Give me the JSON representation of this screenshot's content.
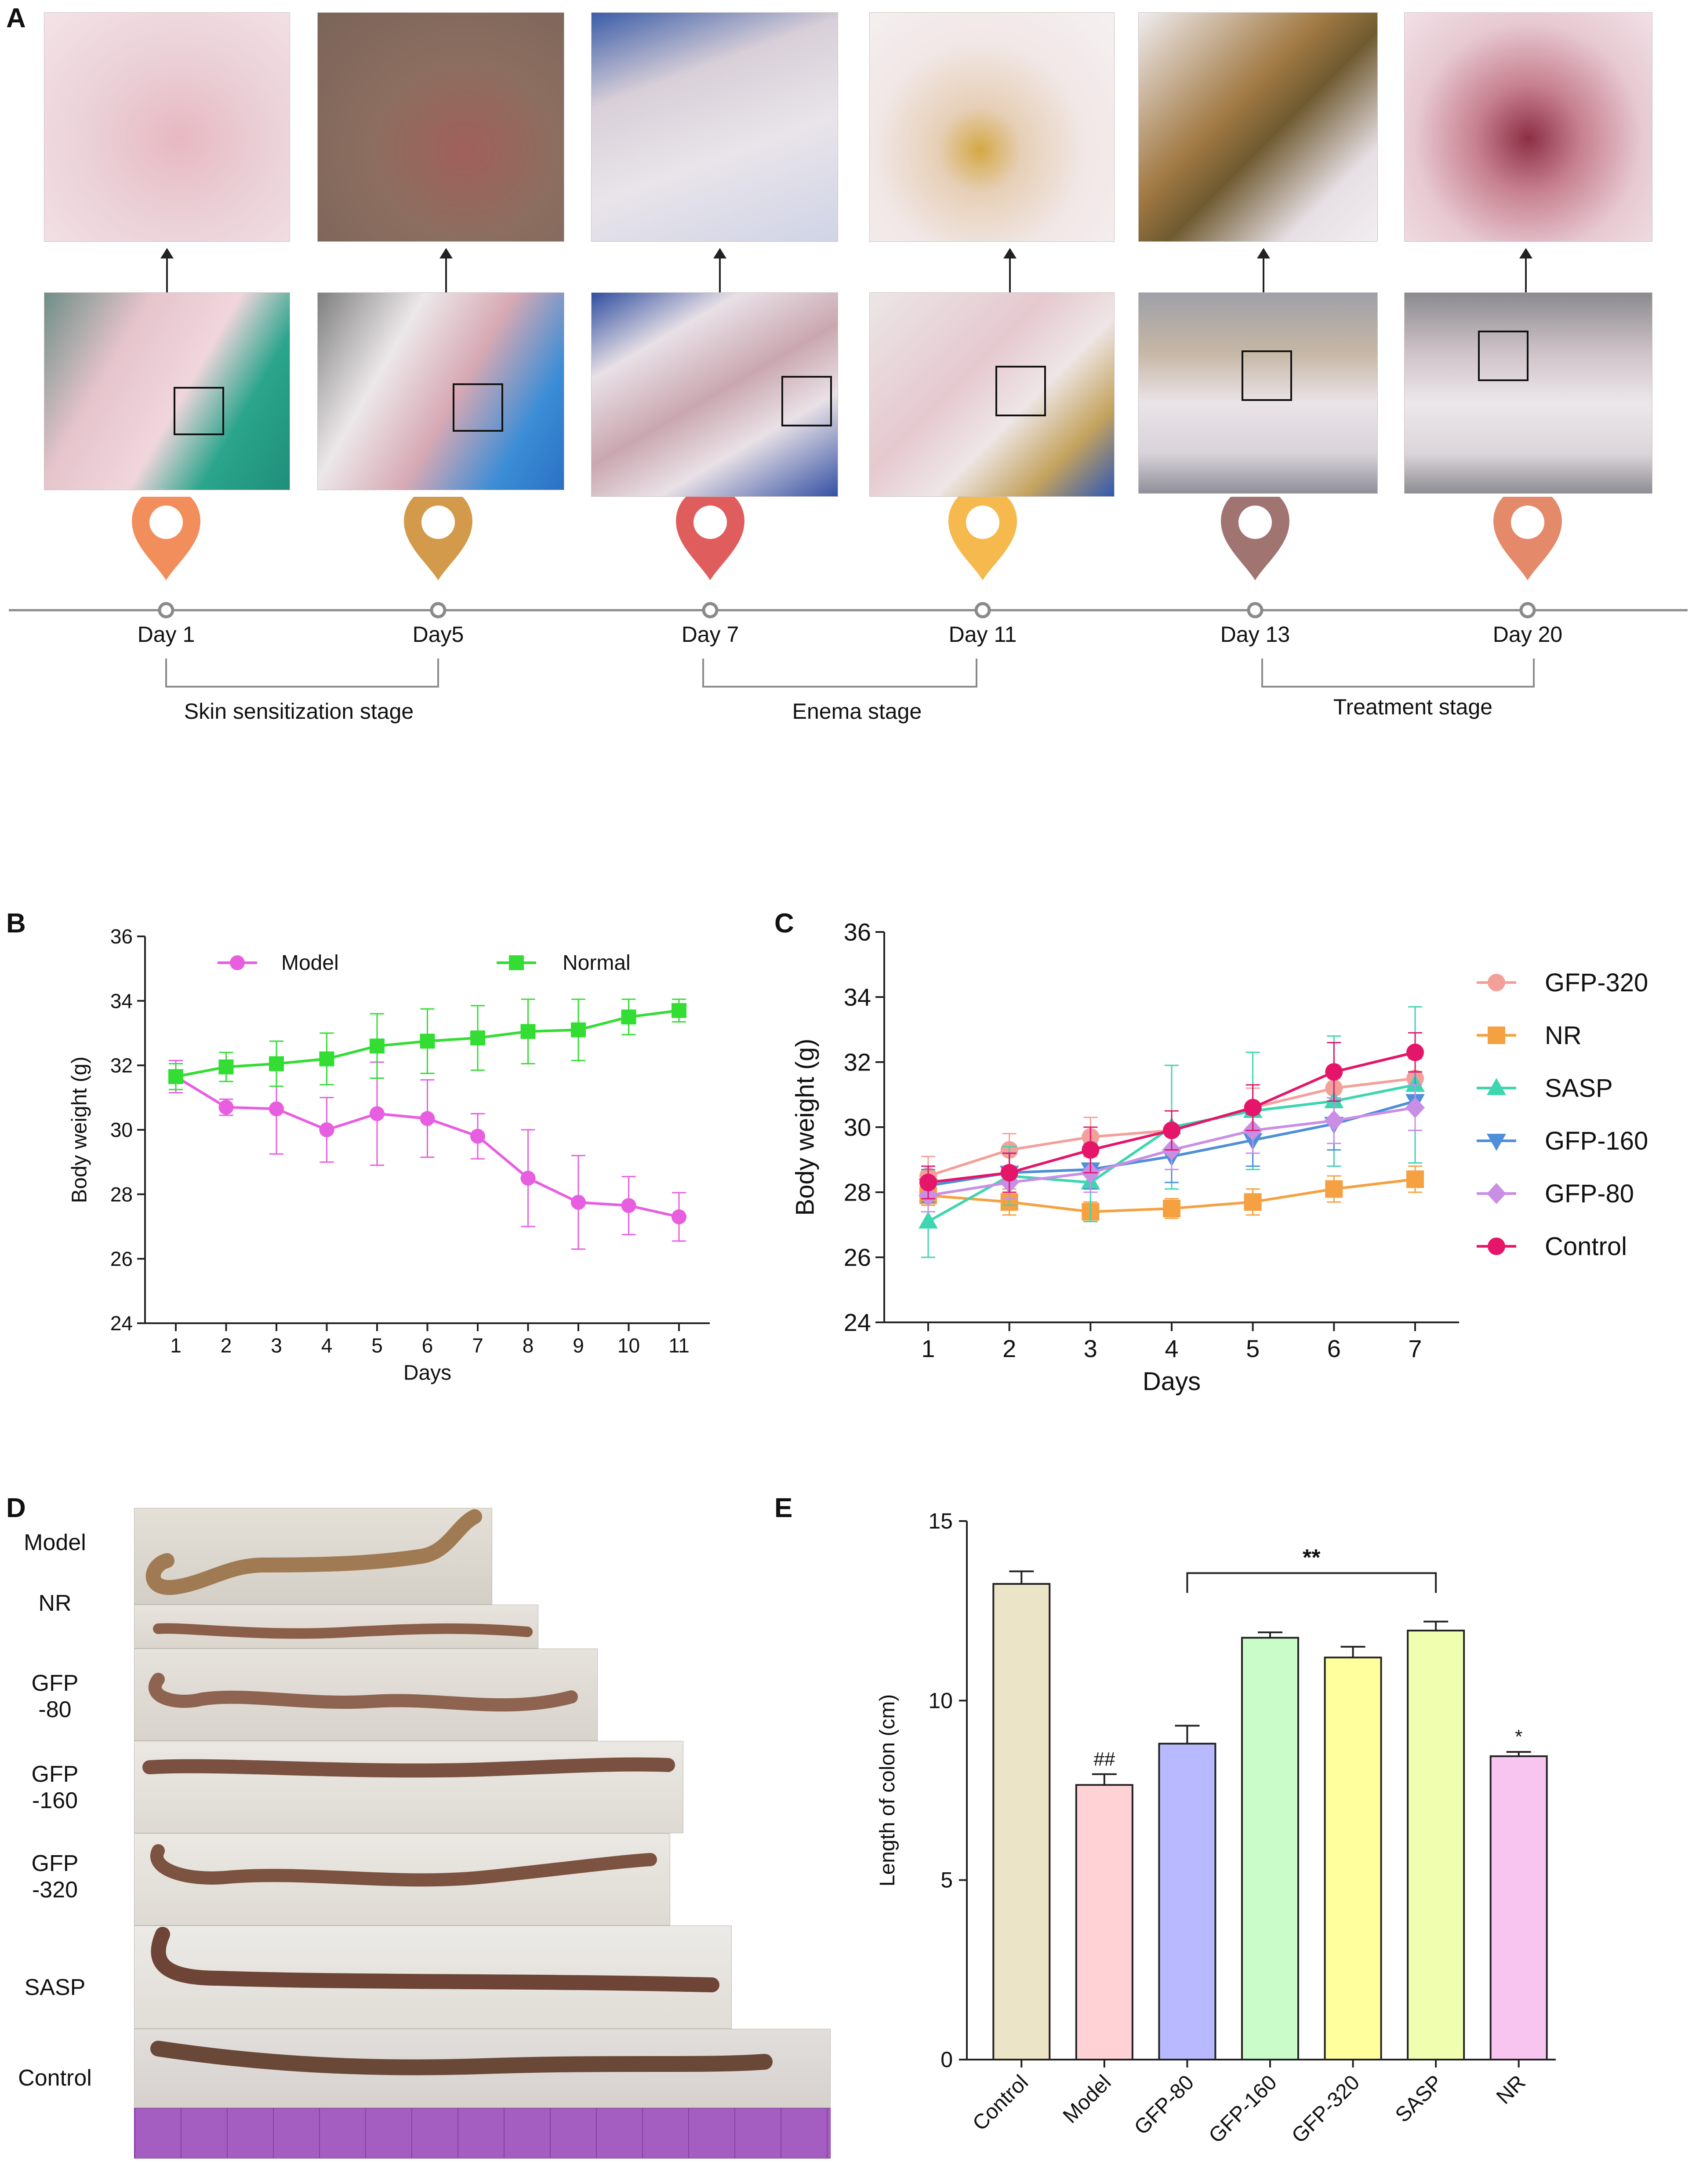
{
  "panels": {
    "a": "A",
    "b": "B",
    "c": "C",
    "d": "D",
    "e": "E"
  },
  "timeline": {
    "days": [
      "Day 1",
      "Day5",
      "Day 7",
      "Day 11",
      "Day 13",
      "Day 20"
    ],
    "marker_colors": [
      "#f28e5b",
      "#d29a4a",
      "#e05d5d",
      "#f5b94d",
      "#a07470",
      "#e48a6a"
    ],
    "stages": [
      "Skin sensitization stage",
      "Enema stage",
      "Treatment stage"
    ]
  },
  "chart_data": [
    {
      "id": "B",
      "type": "line",
      "xlabel": "Days",
      "ylabel": "Body weight (g)",
      "x": [
        1,
        2,
        3,
        4,
        5,
        6,
        7,
        8,
        9,
        10,
        11
      ],
      "ylim": [
        24,
        36
      ],
      "yticks": [
        24,
        26,
        28,
        30,
        32,
        34,
        36
      ],
      "series": [
        {
          "name": "Model",
          "color": "#e85ee0",
          "marker": "circle",
          "values": [
            31.65,
            30.7,
            30.65,
            30.0,
            30.5,
            30.35,
            29.8,
            28.5,
            27.75,
            27.65,
            27.3
          ],
          "errors": [
            0.5,
            0.25,
            1.4,
            1.0,
            1.6,
            1.2,
            0.7,
            1.5,
            1.45,
            0.9,
            0.75
          ]
        },
        {
          "name": "Normal",
          "color": "#33dd33",
          "marker": "square",
          "values": [
            31.65,
            31.95,
            32.05,
            32.2,
            32.6,
            32.75,
            32.85,
            33.05,
            33.1,
            33.5,
            33.7
          ],
          "errors": [
            0.4,
            0.45,
            0.7,
            0.8,
            1.0,
            1.0,
            1.0,
            1.0,
            0.95,
            0.55,
            0.35
          ]
        }
      ]
    },
    {
      "id": "C",
      "type": "line",
      "xlabel": "Days",
      "ylabel": "Body weight (g)",
      "x": [
        1,
        2,
        3,
        4,
        5,
        6,
        7
      ],
      "ylim": [
        24,
        36
      ],
      "yticks": [
        24,
        26,
        28,
        30,
        32,
        34,
        36
      ],
      "series": [
        {
          "name": "GFP-320",
          "color": "#f4a09a",
          "marker": "circle",
          "values": [
            28.5,
            29.3,
            29.7,
            29.9,
            30.6,
            31.2,
            31.5
          ],
          "errors": [
            0.6,
            0.5,
            0.6,
            0.6,
            0.6,
            0.6,
            0.6
          ]
        },
        {
          "name": "NR",
          "color": "#f5a142",
          "marker": "square",
          "values": [
            27.9,
            27.7,
            27.4,
            27.5,
            27.7,
            28.1,
            28.4
          ],
          "errors": [
            0.3,
            0.4,
            0.3,
            0.3,
            0.4,
            0.4,
            0.4
          ]
        },
        {
          "name": "SASP",
          "color": "#3dd6b0",
          "marker": "triangle",
          "values": [
            27.1,
            28.5,
            28.3,
            30.0,
            30.5,
            30.8,
            31.3
          ],
          "errors": [
            1.1,
            0.9,
            1.2,
            1.9,
            1.8,
            2.0,
            2.4
          ]
        },
        {
          "name": "GFP-160",
          "color": "#4d8fd8",
          "marker": "triangle-down",
          "values": [
            28.2,
            28.6,
            28.7,
            29.1,
            29.6,
            30.1,
            30.8
          ],
          "errors": [
            0.5,
            0.6,
            0.6,
            0.8,
            0.8,
            0.8,
            0.9
          ]
        },
        {
          "name": "GFP-80",
          "color": "#c98ee6",
          "marker": "diamond",
          "values": [
            27.9,
            28.3,
            28.6,
            29.3,
            29.9,
            30.2,
            30.6
          ],
          "errors": [
            0.5,
            0.5,
            0.6,
            0.6,
            0.7,
            0.7,
            0.7
          ]
        },
        {
          "name": "Control",
          "color": "#e5156a",
          "marker": "circle",
          "values": [
            28.3,
            28.6,
            29.3,
            29.9,
            30.6,
            31.7,
            32.3
          ],
          "errors": [
            0.5,
            0.6,
            0.7,
            0.6,
            0.7,
            0.9,
            0.6
          ]
        }
      ]
    },
    {
      "id": "E",
      "type": "bar",
      "ylabel": "Length of colon (cm)",
      "categories": [
        "Control",
        "Model",
        "GFP-80",
        "GFP-160",
        "GFP-320",
        "SASP",
        "NR"
      ],
      "values": [
        13.25,
        7.65,
        8.8,
        11.75,
        11.2,
        11.95,
        8.45
      ],
      "errors": [
        0.35,
        0.3,
        0.5,
        0.15,
        0.3,
        0.25,
        0.12
      ],
      "colors": [
        "#ece4c6",
        "#ffd3d6",
        "#b9b9ff",
        "#c9fcc9",
        "#ffff9e",
        "#f0ffaf",
        "#f8c4f0"
      ],
      "ylim": [
        0,
        15
      ],
      "yticks": [
        0,
        5,
        10,
        15
      ],
      "annotations": [
        {
          "category": "Model",
          "text": "##"
        },
        {
          "category": "NR",
          "text": "*"
        },
        {
          "from": "GFP-80",
          "to": "SASP",
          "text": "**"
        }
      ]
    }
  ],
  "colon": {
    "labels": [
      "Model",
      "NR",
      "GFP\n-80",
      "GFP\n-160",
      "GFP\n-320",
      "SASP",
      "Control"
    ]
  }
}
